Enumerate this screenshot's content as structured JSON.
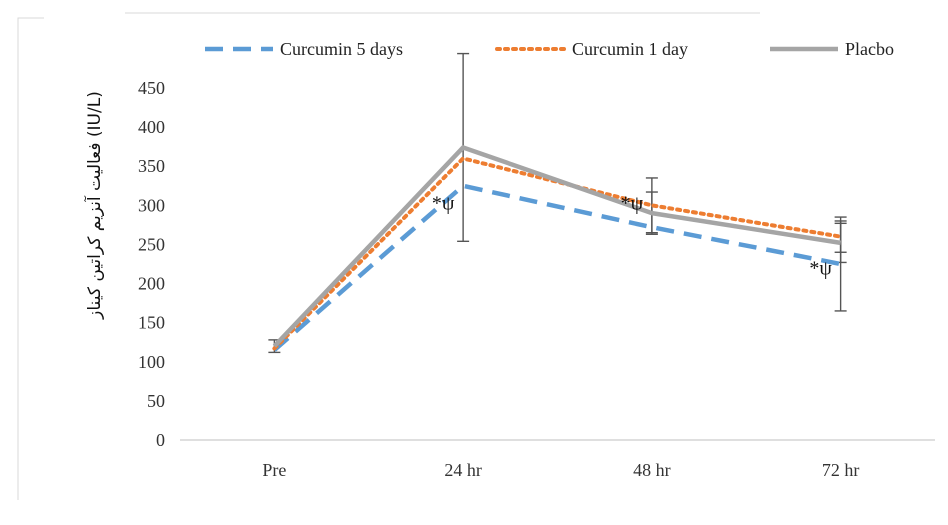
{
  "chart_data": {
    "type": "line",
    "title": "",
    "xlabel": "",
    "ylabel": "فعالیت آنزیم کراتین کیناز (IU/L)",
    "categories": [
      "Pre",
      "24 hr",
      "48 hr",
      "72 hr"
    ],
    "ylim": [
      0,
      450
    ],
    "yticks": [
      0,
      50,
      100,
      150,
      200,
      250,
      300,
      350,
      400,
      450
    ],
    "legend_position": "top",
    "grid": false,
    "series": [
      {
        "name": "Curcumin 5 days",
        "values": [
          115,
          325,
          272,
          225
        ],
        "color": "#5b9bd5",
        "style": "dashed",
        "error_bars": [
          null,
          null,
          null,
          60
        ]
      },
      {
        "name": "Curcumin 1 day",
        "values": [
          117,
          360,
          300,
          260
        ],
        "color": "#ed7d31",
        "style": "dotted",
        "error_bars": [
          null,
          null,
          35,
          20
        ]
      },
      {
        "name": "Placbo",
        "values": [
          120,
          374,
          290,
          252
        ],
        "color": "#a5a5a5",
        "style": "solid",
        "error_bars": [
          8,
          120,
          27,
          25
        ]
      }
    ],
    "annotations": [
      {
        "text": "*ψ",
        "category": "24 hr",
        "value": 305
      },
      {
        "text": "*ψ",
        "category": "48 hr",
        "value": 305
      },
      {
        "text": "*ψ",
        "category": "72 hr",
        "value": 222
      }
    ]
  }
}
